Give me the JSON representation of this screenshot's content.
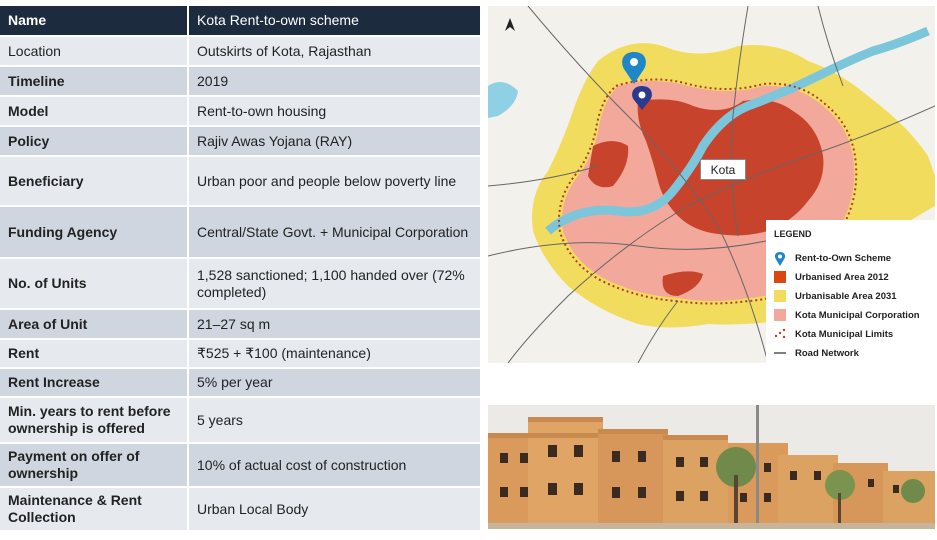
{
  "table": {
    "rows": [
      {
        "label": "Name",
        "value": "Kota Rent-to-own scheme"
      },
      {
        "label": "Location",
        "value": "Outskirts of Kota, Rajasthan"
      },
      {
        "label": "Timeline",
        "value": "2019"
      },
      {
        "label": "Model",
        "value": "Rent-to-own housing"
      },
      {
        "label": "Policy",
        "value": "Rajiv Awas Yojana (RAY)"
      },
      {
        "label": "Beneficiary",
        "value": "Urban poor and people below poverty line"
      },
      {
        "label": "Funding Agency",
        "value": "Central/State Govt. + Municipal Corporation"
      },
      {
        "label": "No. of Units",
        "value": "1,528 sanctioned; 1,100 handed over (72% completed)"
      },
      {
        "label": "Area of Unit",
        "value": "21–27 sq m"
      },
      {
        "label": "Rent",
        "value": "₹525 + ₹100 (maintenance)"
      },
      {
        "label": "Rent Increase",
        "value": "5% per year"
      },
      {
        "label": "Min. years to rent before ownership is offered",
        "value": "5 years"
      },
      {
        "label": "Payment on offer of ownership",
        "value": "10% of actual cost of construction"
      },
      {
        "label": "Maintenance & Rent Collection",
        "value": "Urban Local Body"
      }
    ]
  },
  "map": {
    "city_label": "Kota",
    "north_icon": "north-arrow-icon",
    "legend": {
      "title": "LEGEND",
      "items": [
        {
          "label": "Rent-to-Own Scheme",
          "icon": "location-pin-icon",
          "color": "#1f86c8"
        },
        {
          "label": "Urbanised Area 2012",
          "icon": "swatch",
          "color": "#d9480f"
        },
        {
          "label": "Urbanisable Area 2031",
          "icon": "swatch",
          "color": "#f2dc5d"
        },
        {
          "label": "Kota Municipal Corporation",
          "icon": "swatch",
          "color": "#f2a89a"
        },
        {
          "label": "Kota Municipal Limits",
          "icon": "dotted-boundary",
          "color": "#c0392b"
        },
        {
          "label": "Road Network",
          "icon": "line",
          "color": "#555555"
        }
      ]
    }
  },
  "photo": {
    "subject": "housing-blocks-photo"
  }
}
